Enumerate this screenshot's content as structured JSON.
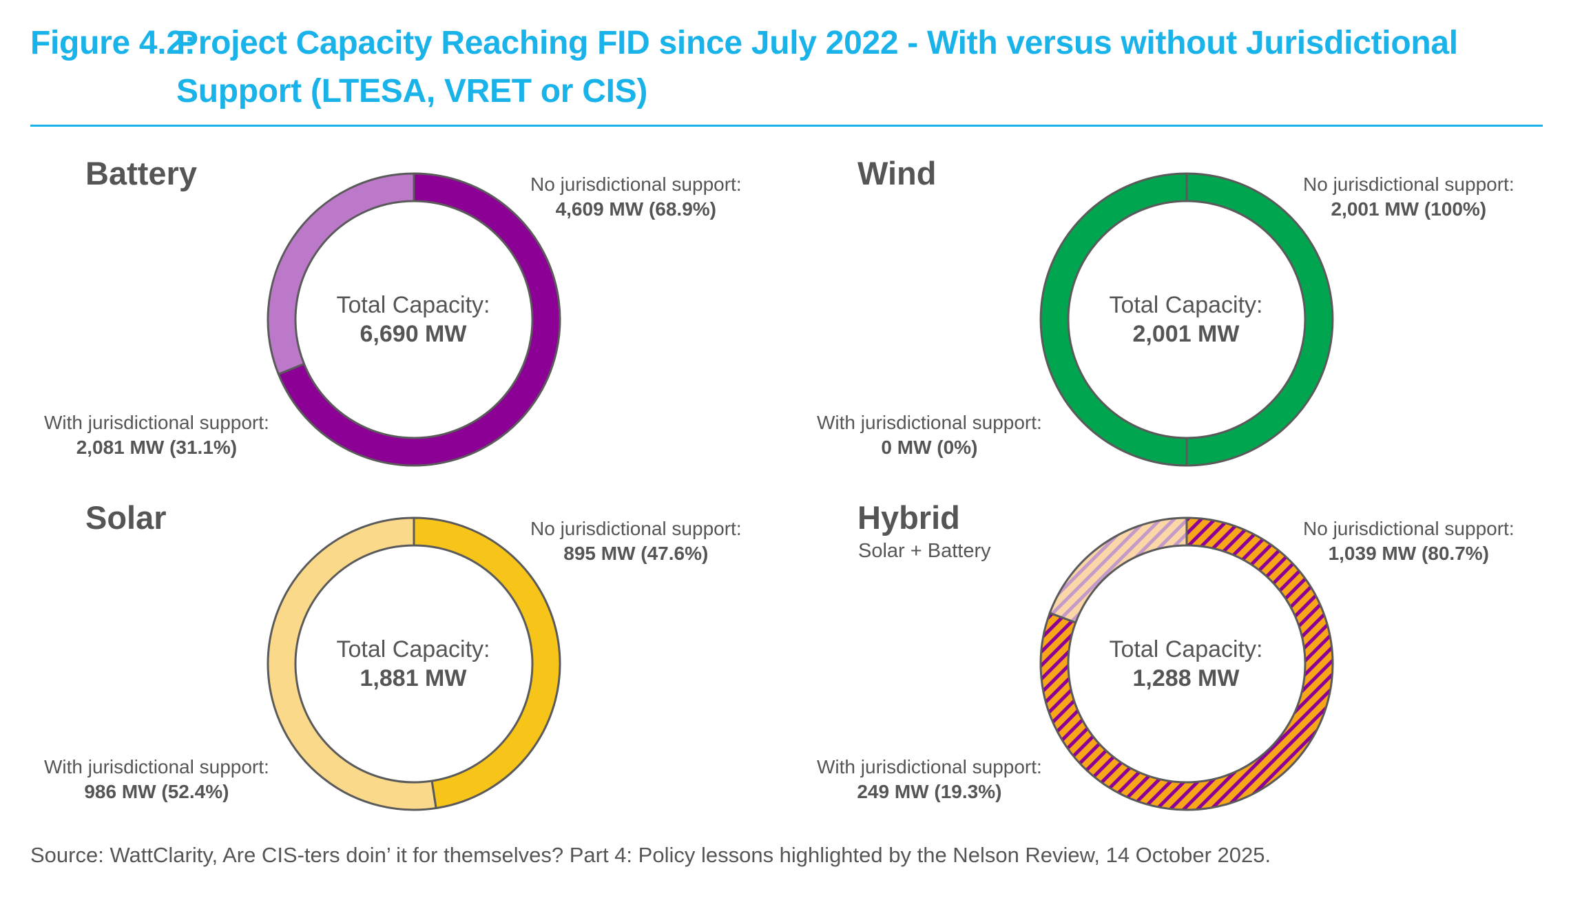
{
  "figure": {
    "label": "Figure 4.2:",
    "title_line1": "Project Capacity Reaching FID since July 2022 - With versus without Jurisdictional",
    "title_line2": "Support (LTESA, VRET or CIS)"
  },
  "source": "Source: WattClarity, Are CIS-ters doin’ it for themselves? Part 4: Policy lessons highlighted by the Nelson Review, 14 October 2025.",
  "chart_data": [
    {
      "type": "pie",
      "title": "Battery",
      "subtitle": "",
      "center_label": "Total Capacity:",
      "center_value": "6,690 MW",
      "unit": "MW",
      "segments": [
        {
          "name": "No jurisdictional support",
          "value": 4609,
          "percent": 68.9,
          "label_name": "No jurisdictional support:",
          "label_value": "4,609 MW (68.9%)",
          "color": "#8c0095",
          "pattern": false
        },
        {
          "name": "With jurisdictional support",
          "value": 2081,
          "percent": 31.1,
          "label_name": "With jurisdictional support:",
          "label_value": "2,081 MW (31.1%)",
          "color": "#bd79c9",
          "pattern": false
        }
      ]
    },
    {
      "type": "pie",
      "title": "Wind",
      "subtitle": "",
      "center_label": "Total Capacity:",
      "center_value": "2,001 MW",
      "unit": "MW",
      "segments": [
        {
          "name": "No jurisdictional support",
          "value": 2001,
          "percent": 100,
          "label_name": "No jurisdictional support:",
          "label_value": "2,001 MW (100%)",
          "color": "#00a64f",
          "pattern": false
        },
        {
          "name": "With jurisdictional support",
          "value": 0,
          "percent": 0,
          "label_name": "With jurisdictional support:",
          "label_value": "0 MW (0%)",
          "color": "#7fd2a0",
          "pattern": false
        }
      ]
    },
    {
      "type": "pie",
      "title": "Solar",
      "subtitle": "",
      "center_label": "Total Capacity:",
      "center_value": "1,881 MW",
      "unit": "MW",
      "segments": [
        {
          "name": "No jurisdictional support",
          "value": 895,
          "percent": 47.6,
          "label_name": "No jurisdictional support:",
          "label_value": "895 MW (47.6%)",
          "color": "#f7c41a",
          "pattern": false
        },
        {
          "name": "With jurisdictional support",
          "value": 986,
          "percent": 52.4,
          "label_name": "With jurisdictional support:",
          "label_value": "986 MW (52.4%)",
          "color": "#fad98a",
          "pattern": false
        }
      ]
    },
    {
      "type": "pie",
      "title": "Hybrid",
      "subtitle": "Solar + Battery",
      "center_label": "Total Capacity:",
      "center_value": "1,288 MW",
      "unit": "MW",
      "segments": [
        {
          "name": "No jurisdictional support",
          "value": 1039,
          "percent": 80.7,
          "label_name": "No jurisdictional support:",
          "label_value": "1,039 MW (80.7%)",
          "color": "#f7a519",
          "stripe": "#8c0095",
          "pattern": true
        },
        {
          "name": "With jurisdictional support",
          "value": 249,
          "percent": 19.3,
          "label_name": "With jurisdictional support:",
          "label_value": "249 MW (19.3%)",
          "color": "#fbd7a8",
          "stripe": "#c49ac9",
          "pattern": true
        }
      ]
    }
  ]
}
